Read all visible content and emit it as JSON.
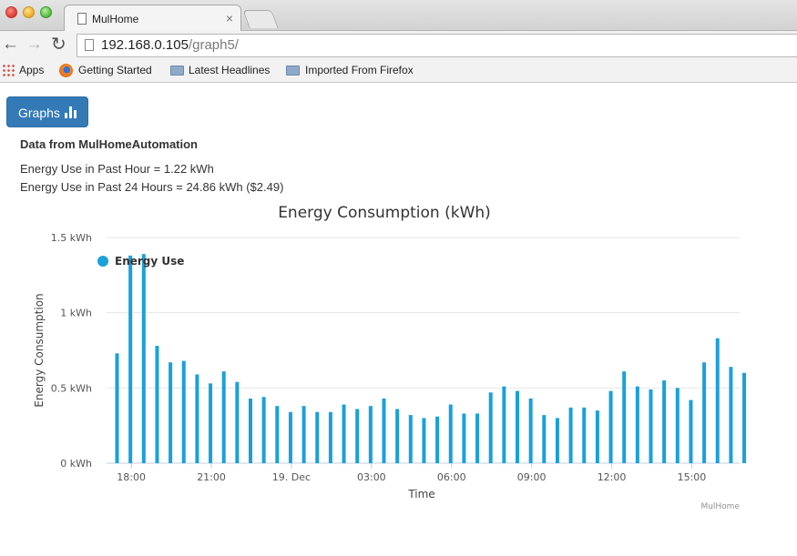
{
  "browser": {
    "tab_title": "MulHome",
    "tab_close": "×",
    "url_host": "192.168.0.105",
    "url_path": "/graph5/",
    "bookmarks": [
      "Apps",
      "Getting Started",
      "Latest Headlines",
      "Imported From Firefox"
    ]
  },
  "page": {
    "graphs_button": "Graphs",
    "data_source": "Data from MulHomeAutomation",
    "hour_line": "Energy Use in Past Hour = 1.22 kWh",
    "day_line": "Energy Use in Past 24 Hours = 24.86 kWh ($2.49)"
  },
  "colors": {
    "series": "#1aa0db",
    "button": "#337ab7"
  },
  "chart_data": {
    "type": "bar",
    "title": "Energy Consumption (kWh)",
    "xlabel": "Time",
    "ylabel": "Energy Consumption",
    "ylim": [
      0,
      1.5
    ],
    "y_ticks": [
      "0 kWh",
      "0.5 kWh",
      "1 kWh",
      "1.5 kWh"
    ],
    "x_ticks": [
      "18:00",
      "21:00",
      "19. Dec",
      "03:00",
      "06:00",
      "09:00",
      "12:00",
      "15:00"
    ],
    "legend": {
      "label": "Energy Use",
      "position": "top-left"
    },
    "credits": "MulHome",
    "interval_minutes": 30,
    "first_bar_time": "17:30",
    "series": [
      {
        "name": "Energy Use",
        "values": [
          0.73,
          1.38,
          1.39,
          0.78,
          0.67,
          0.68,
          0.59,
          0.53,
          0.61,
          0.54,
          0.43,
          0.44,
          0.38,
          0.34,
          0.38,
          0.34,
          0.34,
          0.39,
          0.36,
          0.38,
          0.43,
          0.36,
          0.32,
          0.3,
          0.31,
          0.39,
          0.33,
          0.33,
          0.47,
          0.51,
          0.48,
          0.43,
          0.32,
          0.3,
          0.37,
          0.37,
          0.35,
          0.48,
          0.61,
          0.51,
          0.49,
          0.55,
          0.5,
          0.42,
          0.67,
          0.83,
          0.64,
          0.6
        ]
      }
    ]
  }
}
